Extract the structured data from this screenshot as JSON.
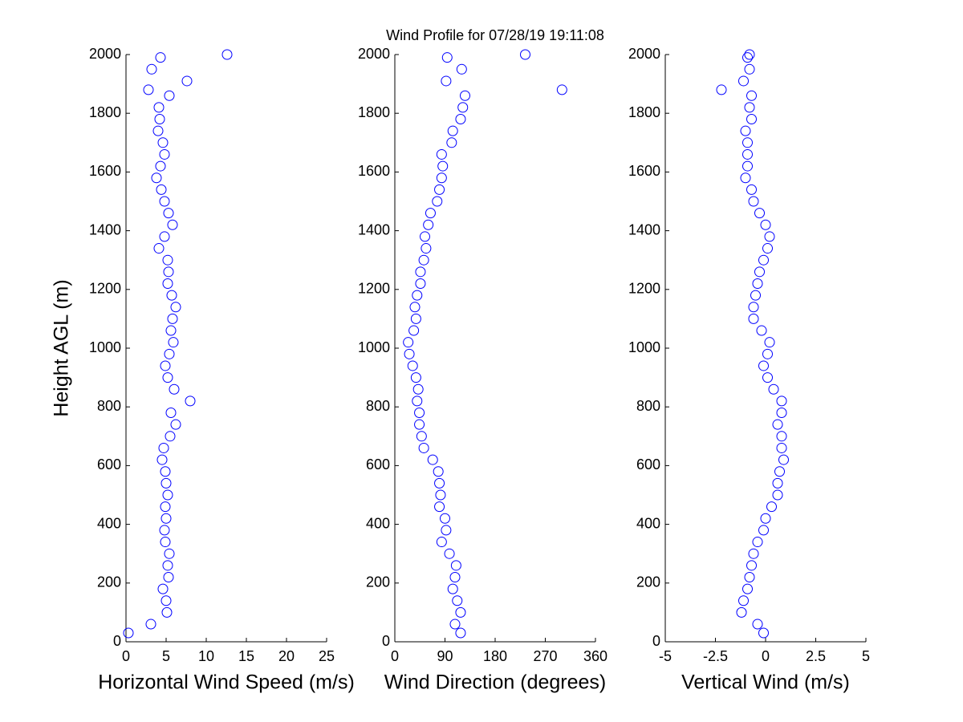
{
  "chart_data": [
    {
      "type": "scatter",
      "xlabel": "Horizontal Wind Speed (m/s)",
      "ylabel": "Height AGL (m)",
      "color": "#0000ff",
      "xlim": [
        0,
        25
      ],
      "xticks": [
        0,
        5,
        10,
        15,
        20,
        25
      ],
      "ylim": [
        0,
        2000
      ],
      "yticks": [
        0,
        200,
        400,
        600,
        800,
        1000,
        1200,
        1400,
        1600,
        1800,
        2000
      ],
      "x": [
        0.3,
        3.1,
        5.1,
        5.0,
        4.6,
        5.3,
        5.2,
        5.4,
        4.9,
        4.8,
        5.0,
        4.9,
        5.2,
        5.0,
        4.9,
        4.5,
        4.7,
        5.5,
        6.2,
        5.6,
        8.0,
        6.0,
        5.2,
        4.9,
        5.4,
        5.9,
        5.6,
        5.8,
        6.2,
        5.7,
        5.2,
        5.3,
        5.2,
        4.1,
        4.8,
        5.8,
        5.3,
        4.8,
        4.4,
        3.8,
        4.3,
        4.8,
        4.6,
        4.0,
        4.2,
        4.1,
        5.4,
        2.8,
        7.6,
        3.2,
        4.3,
        12.6
      ],
      "y": [
        30,
        60,
        100,
        140,
        180,
        220,
        260,
        300,
        340,
        380,
        420,
        460,
        500,
        540,
        580,
        620,
        660,
        700,
        740,
        780,
        820,
        860,
        900,
        940,
        980,
        1020,
        1060,
        1100,
        1140,
        1180,
        1220,
        1260,
        1300,
        1340,
        1380,
        1420,
        1460,
        1500,
        1540,
        1580,
        1620,
        1660,
        1700,
        1740,
        1780,
        1820,
        1860,
        1880,
        1910,
        1950,
        1990,
        2000
      ]
    },
    {
      "type": "scatter",
      "title": "Wind Profile for  07/28/19 19:11:08",
      "xlabel": "Wind Direction (degrees)",
      "color": "#0000ff",
      "xlim": [
        0,
        360
      ],
      "xticks": [
        0,
        90,
        180,
        270,
        360
      ],
      "ylim": [
        0,
        2000
      ],
      "yticks": [
        0,
        200,
        400,
        600,
        800,
        1000,
        1200,
        1400,
        1600,
        1800,
        2000
      ],
      "x": [
        118,
        108,
        118,
        112,
        104,
        108,
        110,
        98,
        84,
        92,
        90,
        80,
        82,
        80,
        78,
        68,
        52,
        48,
        44,
        44,
        40,
        42,
        38,
        32,
        26,
        24,
        34,
        38,
        36,
        40,
        46,
        46,
        52,
        56,
        54,
        60,
        64,
        76,
        80,
        84,
        86,
        84,
        102,
        104,
        118,
        122,
        126,
        300,
        92,
        120,
        94,
        234
      ],
      "y": [
        30,
        60,
        100,
        140,
        180,
        220,
        260,
        300,
        340,
        380,
        420,
        460,
        500,
        540,
        580,
        620,
        660,
        700,
        740,
        780,
        820,
        860,
        900,
        940,
        980,
        1020,
        1060,
        1100,
        1140,
        1180,
        1220,
        1260,
        1300,
        1340,
        1380,
        1420,
        1460,
        1500,
        1540,
        1580,
        1620,
        1660,
        1700,
        1740,
        1780,
        1820,
        1860,
        1880,
        1910,
        1950,
        1990,
        2000
      ]
    },
    {
      "type": "scatter",
      "xlabel": "Vertical Wind (m/s)",
      "color": "#0000ff",
      "xlim": [
        -5,
        5
      ],
      "xticks": [
        -5,
        -2.5,
        0,
        2.5,
        5
      ],
      "ylim": [
        0,
        2000
      ],
      "yticks": [
        0,
        200,
        400,
        600,
        800,
        1000,
        1200,
        1400,
        1600,
        1800,
        2000
      ],
      "x": [
        -0.1,
        -0.4,
        -1.2,
        -1.1,
        -0.9,
        -0.8,
        -0.7,
        -0.6,
        -0.4,
        -0.1,
        0.0,
        0.3,
        0.6,
        0.6,
        0.7,
        0.9,
        0.8,
        0.8,
        0.6,
        0.8,
        0.8,
        0.4,
        0.1,
        -0.1,
        0.1,
        0.2,
        -0.2,
        -0.6,
        -0.6,
        -0.5,
        -0.4,
        -0.3,
        -0.1,
        0.1,
        0.2,
        0.0,
        -0.3,
        -0.6,
        -0.7,
        -1.0,
        -0.9,
        -0.9,
        -0.9,
        -1.0,
        -0.7,
        -0.8,
        -0.7,
        -2.2,
        -1.1,
        -0.8,
        -0.9,
        -0.8
      ],
      "y": [
        30,
        60,
        100,
        140,
        180,
        220,
        260,
        300,
        340,
        380,
        420,
        460,
        500,
        540,
        580,
        620,
        660,
        700,
        740,
        780,
        820,
        860,
        900,
        940,
        980,
        1020,
        1060,
        1100,
        1140,
        1180,
        1220,
        1260,
        1300,
        1340,
        1380,
        1420,
        1460,
        1500,
        1540,
        1580,
        1620,
        1660,
        1700,
        1740,
        1780,
        1820,
        1860,
        1880,
        1910,
        1950,
        1990,
        2000
      ]
    }
  ]
}
